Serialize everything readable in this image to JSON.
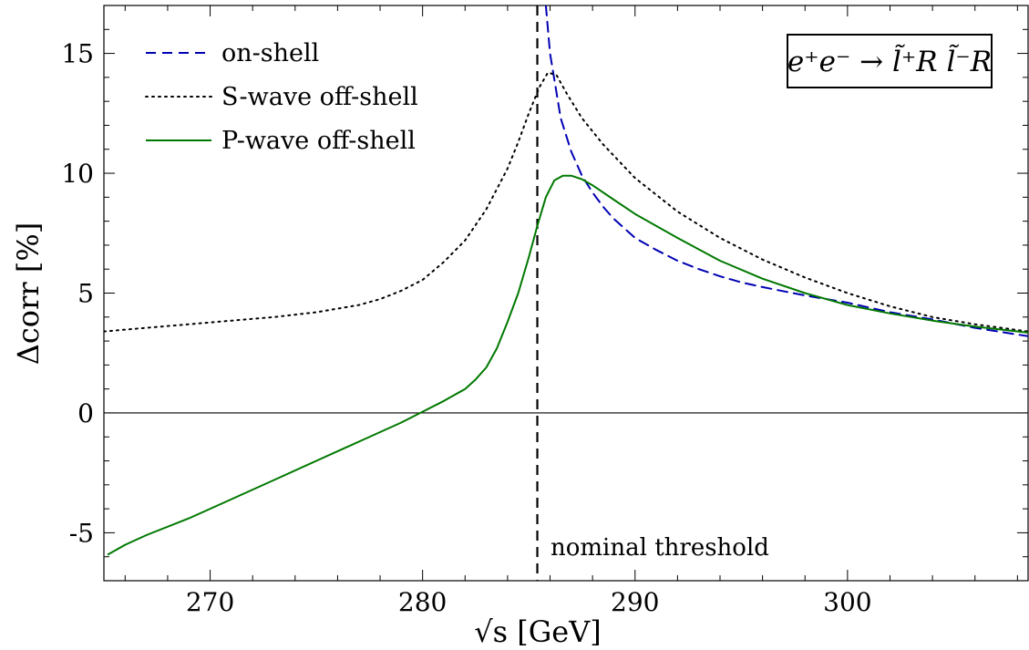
{
  "chart_data": {
    "type": "line",
    "title": "",
    "xlabel": "√s [GeV]",
    "ylabel": "Δcorr [%]",
    "xlim": [
      265,
      308.5
    ],
    "ylim": [
      -7,
      17
    ],
    "x_ticks": [
      270,
      280,
      290,
      300
    ],
    "x_tick_labels": [
      "270",
      "280",
      "290",
      "300"
    ],
    "y_ticks": [
      -5,
      0,
      5,
      10,
      15
    ],
    "y_tick_labels": [
      "-5",
      "0",
      "5",
      "10",
      "15"
    ],
    "grid": false,
    "legend_position": "top-left",
    "process_label": "e⁺e⁻ → l̃⁺R l̃⁻R",
    "annotations": [
      {
        "text": "nominal threshold",
        "x": 285.4
      }
    ],
    "reference_lines": {
      "horizontal_y": 0,
      "vertical_x": 285.4
    },
    "series": [
      {
        "name": "on-shell",
        "color": "#0000b4",
        "style": "dashed",
        "x": [
          285.8,
          286.0,
          286.5,
          287.0,
          287.5,
          288.0,
          288.5,
          289.0,
          290.0,
          291.0,
          292.0,
          293.0,
          294.0,
          295.0,
          296.0,
          298.0,
          300.0,
          302.0,
          304.0,
          306.0,
          308.5
        ],
        "values": [
          17.0,
          15.0,
          12.3,
          10.9,
          9.9,
          9.2,
          8.6,
          8.1,
          7.3,
          6.8,
          6.35,
          6.0,
          5.7,
          5.45,
          5.25,
          4.9,
          4.6,
          4.2,
          3.9,
          3.55,
          3.2
        ]
      },
      {
        "name": "S-wave off-shell",
        "color": "#000000",
        "style": "dotted",
        "x": [
          265,
          267,
          269,
          271,
          273,
          275,
          277,
          278,
          279,
          280,
          281,
          282,
          283,
          284,
          284.5,
          285,
          285.5,
          285.9,
          286.3,
          286.8,
          287.5,
          288.5,
          290,
          292,
          294,
          296,
          298,
          300,
          302,
          304,
          306,
          308.5
        ],
        "values": [
          3.4,
          3.55,
          3.7,
          3.85,
          4.0,
          4.2,
          4.5,
          4.75,
          5.1,
          5.55,
          6.3,
          7.2,
          8.5,
          10.2,
          11.3,
          12.5,
          13.6,
          14.2,
          14.1,
          13.3,
          12.3,
          11.2,
          9.8,
          8.4,
          7.3,
          6.4,
          5.65,
          5.0,
          4.45,
          4.0,
          3.7,
          3.4
        ]
      },
      {
        "name": "P-wave off-shell",
        "color": "#007800",
        "style": "solid",
        "x": [
          265.2,
          266,
          267,
          269,
          271,
          273,
          275,
          277,
          279,
          280,
          281,
          282,
          282.5,
          283,
          283.5,
          284,
          284.5,
          285,
          285.4,
          285.8,
          286.2,
          286.6,
          287.0,
          287.5,
          288,
          289,
          290,
          292,
          294,
          296,
          298,
          300,
          302,
          304,
          306,
          308.5
        ],
        "values": [
          -5.9,
          -5.5,
          -5.1,
          -4.4,
          -3.6,
          -2.8,
          -2.0,
          -1.2,
          -0.4,
          0.05,
          0.5,
          1.0,
          1.4,
          1.9,
          2.7,
          3.8,
          5.0,
          6.5,
          7.8,
          9.0,
          9.7,
          9.9,
          9.9,
          9.75,
          9.5,
          8.9,
          8.3,
          7.3,
          6.35,
          5.6,
          5.0,
          4.5,
          4.15,
          3.85,
          3.6,
          3.35
        ]
      }
    ]
  }
}
